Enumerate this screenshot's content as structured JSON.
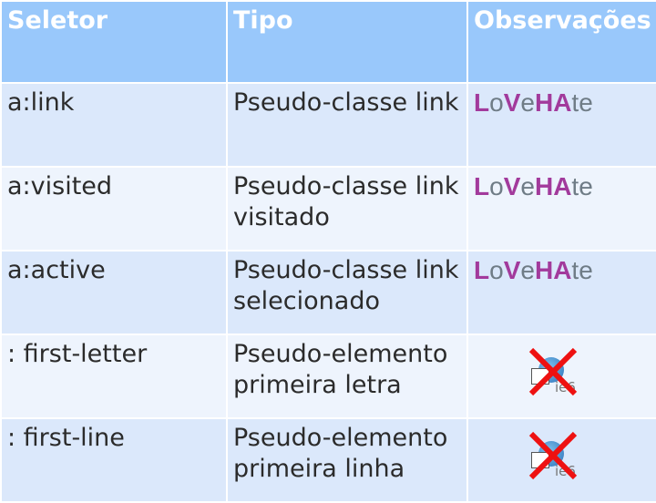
{
  "headers": [
    "Seletor",
    "Tipo",
    "Observações"
  ],
  "rows": [
    {
      "selector": "a:link",
      "type": "Pseudo-classe link",
      "note": "LoVeHAte"
    },
    {
      "selector": "a:visited",
      "type": "Pseudo-classe link visitado",
      "note": "LoVeHAte"
    },
    {
      "selector": "a:active",
      "type": "Pseudo-classe link selecionado",
      "note": "LoVeHAte"
    },
    {
      "selector": ": first-letter",
      "type": "Pseudo-elemento primeira letra",
      "note": "ie6"
    },
    {
      "selector": ": first-line",
      "type": "Pseudo-elemento primeira linha",
      "note": "ie6"
    }
  ],
  "mnemonic": {
    "L": "L",
    "o": "o",
    "V": "V",
    "e": "e",
    "H": "H",
    "A": "A",
    "te": "te"
  },
  "colors": {
    "header": "#99c8fb",
    "row_dark": "#dbe8fb",
    "row_light": "#eef4fd",
    "highlight": "#a23a9c",
    "cross": "#ee1111"
  },
  "icons": {
    "unsupported": "ie6-crossed-icon"
  }
}
